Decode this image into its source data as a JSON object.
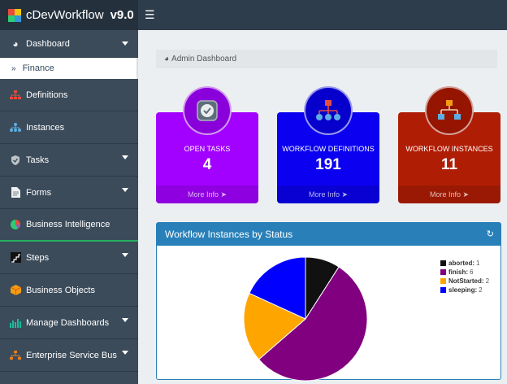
{
  "app": {
    "name": "cDevWorkflow",
    "version": "v9.0"
  },
  "header": {
    "menu_icon": "hamburger-icon"
  },
  "sidebar": {
    "items": [
      {
        "label": "Dashboard",
        "icon": "dashboard-icon",
        "caret": true
      },
      {
        "label": "Finance",
        "sub": true
      },
      {
        "label": "Definitions",
        "icon": "sitemap-icon"
      },
      {
        "label": "Instances",
        "icon": "instances-icon"
      },
      {
        "label": "Tasks",
        "icon": "tasks-icon",
        "caret": true
      },
      {
        "label": "Forms",
        "icon": "forms-icon",
        "caret": true
      },
      {
        "label": "Business Intelligence",
        "icon": "bi-icon"
      },
      {
        "label": "Steps",
        "icon": "steps-icon",
        "caret": true
      },
      {
        "label": "Business Objects",
        "icon": "objects-icon"
      },
      {
        "label": "Manage Dashboards",
        "icon": "bars-icon",
        "caret": true
      },
      {
        "label": "Enterprise Service Bus",
        "icon": "esb-icon",
        "caret": true
      }
    ]
  },
  "breadcrumb": {
    "label": "Admin Dashboard"
  },
  "cards": [
    {
      "label": "OPEN TASKS",
      "value": "4",
      "more": "More Info",
      "color": "#a200ff",
      "badge": "#8a00db"
    },
    {
      "label": "WORKFLOW DEFINITIONS",
      "value": "191",
      "more": "More Info",
      "color": "#0b00f0",
      "badge": "#0700cc"
    },
    {
      "label": "WORKFLOW INSTANCES",
      "value": "11",
      "more": "More Info",
      "color": "#b01d05",
      "badge": "#951500"
    }
  ],
  "panel": {
    "title": "Workflow Instances by Status"
  },
  "chart_data": {
    "type": "pie",
    "title": "Workflow Instances by Status",
    "categories": [
      "aborted",
      "finish",
      "NotStarted",
      "sleeping"
    ],
    "values": [
      1,
      6,
      2,
      2
    ],
    "colors": [
      "#111111",
      "#800080",
      "#ffa500",
      "#0000ff"
    ],
    "legend_position": "top-right"
  }
}
